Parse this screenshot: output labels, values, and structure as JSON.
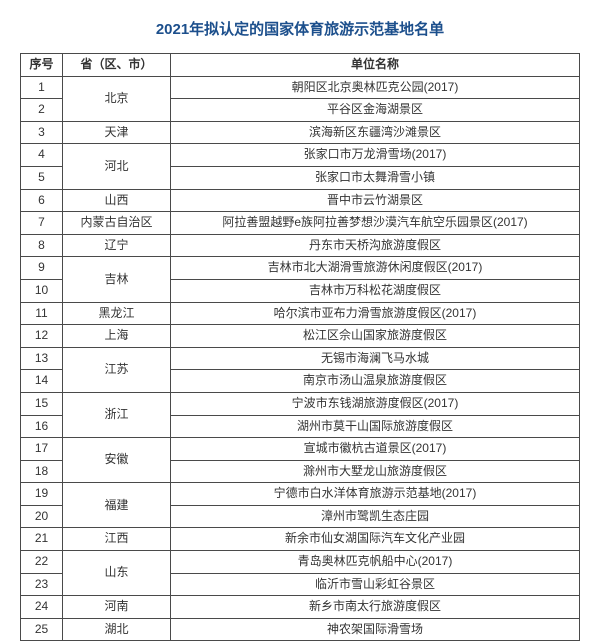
{
  "title": "2021年拟认定的国家体育旅游示范基地名单",
  "title_color": "#1c4f8c",
  "title_fontsize": 15,
  "border_color": "#4a4a4a",
  "text_color": "#333333",
  "cell_fontsize": 12,
  "columns": {
    "seq": "序号",
    "province": "省（区、市）",
    "unit": "单位名称"
  },
  "groups": [
    {
      "province": "北京",
      "rows": [
        {
          "seq": "1",
          "unit": "朝阳区北京奥林匹克公园(2017)"
        },
        {
          "seq": "2",
          "unit": "平谷区金海湖景区"
        }
      ]
    },
    {
      "province": "天津",
      "rows": [
        {
          "seq": "3",
          "unit": "滨海新区东疆湾沙滩景区"
        }
      ]
    },
    {
      "province": "河北",
      "rows": [
        {
          "seq": "4",
          "unit": "张家口市万龙滑雪场(2017)"
        },
        {
          "seq": "5",
          "unit": "张家口市太舞滑雪小镇"
        }
      ]
    },
    {
      "province": "山西",
      "rows": [
        {
          "seq": "6",
          "unit": "晋中市云竹湖景区"
        }
      ]
    },
    {
      "province": "内蒙古自治区",
      "rows": [
        {
          "seq": "7",
          "unit": "阿拉善盟越野e族阿拉善梦想沙漠汽车航空乐园景区(2017)"
        }
      ]
    },
    {
      "province": "辽宁",
      "rows": [
        {
          "seq": "8",
          "unit": "丹东市天桥沟旅游度假区"
        }
      ]
    },
    {
      "province": "吉林",
      "rows": [
        {
          "seq": "9",
          "unit": "吉林市北大湖滑雪旅游休闲度假区(2017)"
        },
        {
          "seq": "10",
          "unit": "吉林市万科松花湖度假区"
        }
      ]
    },
    {
      "province": "黑龙江",
      "rows": [
        {
          "seq": "11",
          "unit": "哈尔滨市亚布力滑雪旅游度假区(2017)"
        }
      ]
    },
    {
      "province": "上海",
      "rows": [
        {
          "seq": "12",
          "unit": "松江区佘山国家旅游度假区"
        }
      ]
    },
    {
      "province": "江苏",
      "rows": [
        {
          "seq": "13",
          "unit": "无锡市海澜飞马水城"
        },
        {
          "seq": "14",
          "unit": "南京市汤山温泉旅游度假区"
        }
      ]
    },
    {
      "province": "浙江",
      "rows": [
        {
          "seq": "15",
          "unit": "宁波市东钱湖旅游度假区(2017)"
        },
        {
          "seq": "16",
          "unit": "湖州市莫干山国际旅游度假区"
        }
      ]
    },
    {
      "province": "安徽",
      "rows": [
        {
          "seq": "17",
          "unit": "宣城市徽杭古道景区(2017)"
        },
        {
          "seq": "18",
          "unit": "滁州市大墅龙山旅游度假区"
        }
      ]
    },
    {
      "province": "福建",
      "rows": [
        {
          "seq": "19",
          "unit": "宁德市白水洋体育旅游示范基地(2017)"
        },
        {
          "seq": "20",
          "unit": "漳州市鹭凯生态庄园"
        }
      ]
    },
    {
      "province": "江西",
      "rows": [
        {
          "seq": "21",
          "unit": "新余市仙女湖国际汽车文化产业园"
        }
      ]
    },
    {
      "province": "山东",
      "rows": [
        {
          "seq": "22",
          "unit": "青岛奥林匹克帆船中心(2017)"
        },
        {
          "seq": "23",
          "unit": "临沂市雪山彩虹谷景区"
        }
      ]
    },
    {
      "province": "河南",
      "rows": [
        {
          "seq": "24",
          "unit": "新乡市南太行旅游度假区"
        }
      ]
    },
    {
      "province": "湖北",
      "rows": [
        {
          "seq": "25",
          "unit": "神农架国际滑雪场"
        }
      ]
    }
  ]
}
